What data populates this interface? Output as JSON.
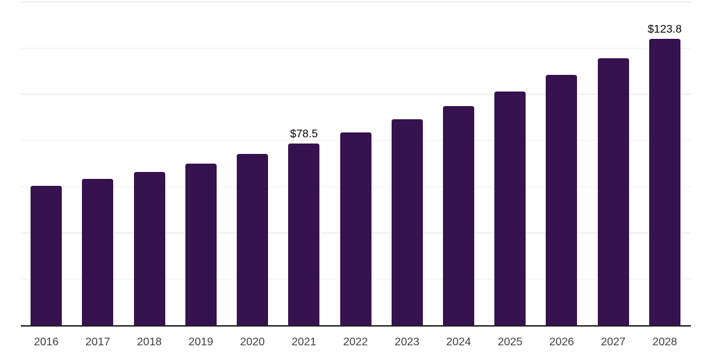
{
  "chart_data": {
    "type": "bar",
    "title": "",
    "xlabel": "",
    "ylabel": "",
    "categories": [
      "2016",
      "2017",
      "2018",
      "2019",
      "2020",
      "2021",
      "2022",
      "2023",
      "2024",
      "2025",
      "2026",
      "2027",
      "2028"
    ],
    "series": [
      {
        "name": "value",
        "values": [
          60.1,
          63.1,
          66.1,
          69.9,
          74.1,
          78.5,
          83.4,
          88.9,
          94.6,
          100.9,
          108.1,
          115.4,
          123.8
        ]
      }
    ],
    "data_labels": [
      "",
      "",
      "",
      "",
      "",
      "$78.5",
      "",
      "",
      "",
      "",
      "",
      "",
      "$123.8"
    ],
    "ylim": [
      0,
      140
    ],
    "grid_step": 20,
    "grid": true,
    "legend_position": "none",
    "colors": {
      "bar": "#36124F",
      "gridline": "#f0f0f0",
      "axis_line": "#212121",
      "tick_label": "#3d3d3d",
      "value_label": "#000000",
      "background": "#ffffff"
    }
  }
}
